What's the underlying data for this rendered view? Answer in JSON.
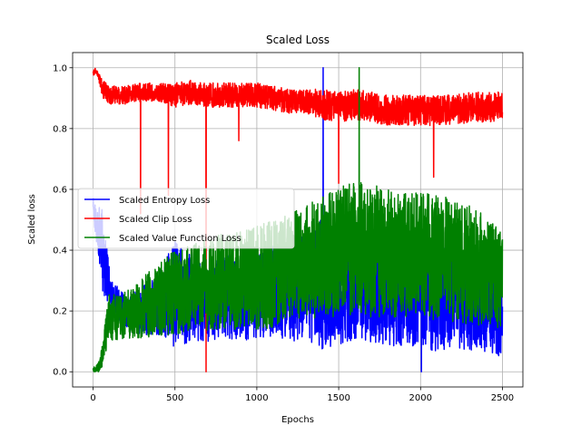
{
  "chart_data": {
    "type": "line",
    "title": "Scaled Loss",
    "xlabel": "Epochs",
    "ylabel": "Scaled loss",
    "xlim": [
      -125,
      2625
    ],
    "ylim": [
      -0.05,
      1.05
    ],
    "xticks": [
      0,
      500,
      1000,
      1500,
      2000,
      2500
    ],
    "yticks": [
      0.0,
      0.2,
      0.4,
      0.6,
      0.8,
      1.0
    ],
    "xtick_labels": [
      "0",
      "500",
      "1000",
      "1500",
      "2000",
      "2500"
    ],
    "ytick_labels": [
      "0.0",
      "0.2",
      "0.4",
      "0.6",
      "0.8",
      "1.0"
    ],
    "grid": true,
    "legend_position": "center-left",
    "series": [
      {
        "name": "Scaled Entropy Loss",
        "color": "#0000ff",
        "x": [
          0,
          20,
          40,
          60,
          80,
          100,
          120,
          150,
          200,
          300,
          400,
          500,
          600,
          700,
          800,
          900,
          1000,
          1100,
          1200,
          1300,
          1400,
          1500,
          1600,
          1700,
          1800,
          1900,
          2000,
          2100,
          2200,
          2300,
          2400,
          2500
        ],
        "values": [
          0.54,
          0.48,
          0.44,
          0.4,
          0.33,
          0.28,
          0.24,
          0.22,
          0.19,
          0.2,
          0.22,
          0.26,
          0.24,
          0.22,
          0.25,
          0.24,
          0.25,
          0.27,
          0.26,
          0.28,
          0.29,
          0.27,
          0.28,
          0.27,
          0.26,
          0.26,
          0.27,
          0.24,
          0.24,
          0.23,
          0.22,
          0.19
        ],
        "spread": [
          0.04,
          0.06,
          0.1,
          0.14,
          0.1,
          0.06,
          0.06,
          0.06,
          0.06,
          0.08,
          0.1,
          0.18,
          0.14,
          0.12,
          0.14,
          0.14,
          0.14,
          0.16,
          0.16,
          0.18,
          0.22,
          0.18,
          0.18,
          0.18,
          0.18,
          0.18,
          0.18,
          0.18,
          0.16,
          0.16,
          0.16,
          0.14
        ],
        "peak": {
          "x": 1405,
          "y": 1.0
        },
        "min_point": {
          "x": 2005,
          "y": 0.0
        }
      },
      {
        "name": "Scaled Clip Loss",
        "color": "#ff0000",
        "x": [
          0,
          10,
          20,
          30,
          40,
          60,
          80,
          100,
          150,
          200,
          300,
          400,
          500,
          600,
          700,
          800,
          900,
          1000,
          1100,
          1200,
          1300,
          1400,
          1500,
          1600,
          1700,
          1800,
          1900,
          2000,
          2100,
          2200,
          2300,
          2400,
          2500
        ],
        "values": [
          0.98,
          0.99,
          0.99,
          0.98,
          0.96,
          0.93,
          0.92,
          0.91,
          0.91,
          0.91,
          0.92,
          0.92,
          0.91,
          0.92,
          0.91,
          0.91,
          0.91,
          0.91,
          0.9,
          0.89,
          0.89,
          0.88,
          0.87,
          0.88,
          0.87,
          0.86,
          0.86,
          0.86,
          0.86,
          0.86,
          0.87,
          0.87,
          0.87
        ],
        "spread": [
          0.01,
          0.01,
          0.01,
          0.01,
          0.02,
          0.03,
          0.03,
          0.03,
          0.03,
          0.03,
          0.03,
          0.03,
          0.04,
          0.04,
          0.04,
          0.04,
          0.04,
          0.04,
          0.04,
          0.04,
          0.04,
          0.05,
          0.05,
          0.05,
          0.05,
          0.05,
          0.05,
          0.05,
          0.05,
          0.05,
          0.05,
          0.05,
          0.05
        ],
        "dips": [
          [
            290,
            0.52
          ],
          [
            460,
            0.58
          ],
          [
            690,
            0.0
          ],
          [
            890,
            0.76
          ],
          [
            1500,
            0.62
          ],
          [
            2080,
            0.64
          ]
        ]
      },
      {
        "name": "Scaled Value Function Loss",
        "color": "#008000",
        "x": [
          0,
          20,
          40,
          60,
          80,
          100,
          150,
          200,
          300,
          400,
          500,
          600,
          700,
          800,
          900,
          1000,
          1100,
          1200,
          1300,
          1400,
          1500,
          1600,
          1700,
          1800,
          1900,
          2000,
          2100,
          2200,
          2300,
          2400,
          2500
        ],
        "values": [
          0.01,
          0.01,
          0.02,
          0.06,
          0.13,
          0.18,
          0.17,
          0.19,
          0.21,
          0.24,
          0.26,
          0.28,
          0.29,
          0.3,
          0.3,
          0.31,
          0.32,
          0.34,
          0.36,
          0.38,
          0.4,
          0.41,
          0.4,
          0.39,
          0.39,
          0.38,
          0.38,
          0.36,
          0.35,
          0.33,
          0.3
        ],
        "spread": [
          0.01,
          0.01,
          0.02,
          0.04,
          0.06,
          0.08,
          0.08,
          0.08,
          0.1,
          0.12,
          0.14,
          0.14,
          0.16,
          0.16,
          0.16,
          0.17,
          0.18,
          0.18,
          0.19,
          0.2,
          0.22,
          0.22,
          0.22,
          0.22,
          0.21,
          0.21,
          0.21,
          0.2,
          0.2,
          0.18,
          0.16
        ],
        "peak": {
          "x": 1625,
          "y": 1.0
        }
      }
    ]
  }
}
